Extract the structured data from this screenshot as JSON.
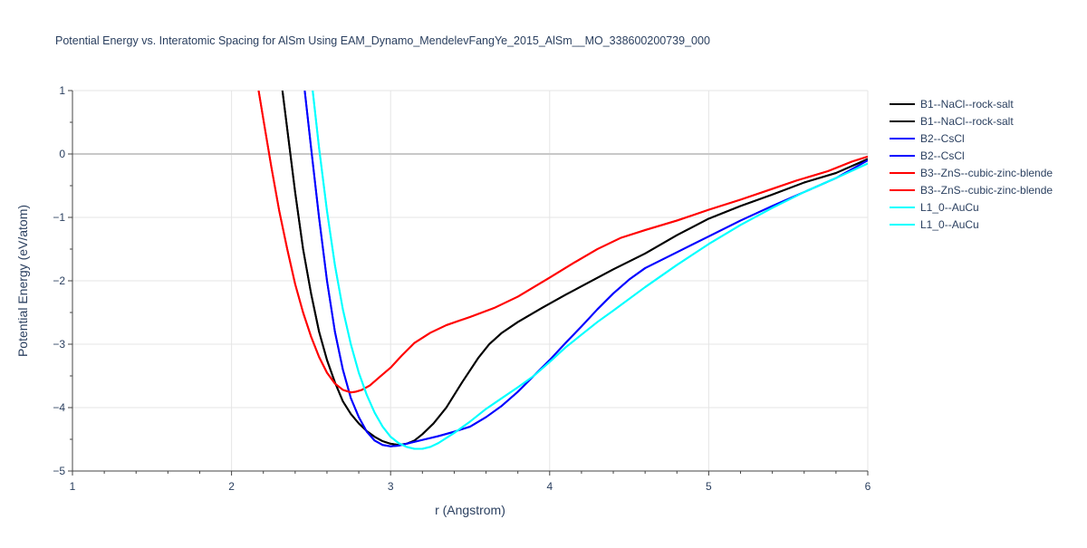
{
  "chart_data": {
    "type": "line",
    "title": "Potential Energy vs. Interatomic Spacing for AlSm Using EAM_Dynamo_MendelevFangYe_2015_AlSm__MO_338600200739_000",
    "xlabel": "r (Angstrom)",
    "ylabel": "Potential Energy (eV/atom)",
    "xlim": [
      1,
      6
    ],
    "ylim": [
      -5,
      1
    ],
    "xticks": [
      1,
      2,
      3,
      4,
      5,
      6
    ],
    "yticks": [
      1,
      0,
      -1,
      -2,
      -3,
      -4,
      -5
    ],
    "xtick_labels": [
      "1",
      "2",
      "3",
      "4",
      "5",
      "6"
    ],
    "ytick_labels": [
      "1",
      "0",
      "−1",
      "−2",
      "−3",
      "−4",
      "−5"
    ],
    "grid": true,
    "legend_position": "top-right",
    "series": [
      {
        "name": "B1--NaCl--rock-salt",
        "color": "#000000",
        "x": [
          2.32,
          2.36,
          2.4,
          2.45,
          2.5,
          2.55,
          2.6,
          2.65,
          2.7,
          2.75,
          2.8,
          2.85,
          2.9,
          2.95,
          3.0,
          3.05,
          3.1,
          3.15,
          3.2,
          3.27,
          3.35,
          3.45,
          3.55,
          3.62,
          3.7,
          3.8,
          3.95,
          4.1,
          4.25,
          4.4,
          4.6,
          4.8,
          5.0,
          5.2,
          5.4,
          5.6,
          5.8,
          6.0
        ],
        "y": [
          1.0,
          0.2,
          -0.6,
          -1.5,
          -2.2,
          -2.8,
          -3.25,
          -3.6,
          -3.9,
          -4.1,
          -4.25,
          -4.37,
          -4.46,
          -4.53,
          -4.57,
          -4.59,
          -4.57,
          -4.52,
          -4.42,
          -4.25,
          -4.0,
          -3.6,
          -3.22,
          -3.0,
          -2.82,
          -2.65,
          -2.43,
          -2.22,
          -2.02,
          -1.82,
          -1.57,
          -1.28,
          -1.02,
          -0.82,
          -0.64,
          -0.45,
          -0.3,
          -0.08
        ]
      },
      {
        "name": "B1--NaCl--rock-salt",
        "color": "#000000",
        "x": [
          2.32,
          2.36,
          2.4,
          2.45,
          2.5,
          2.55,
          2.6,
          2.65,
          2.7,
          2.75,
          2.8,
          2.85,
          2.9,
          2.95,
          3.0,
          3.05,
          3.1,
          3.15,
          3.2,
          3.27,
          3.35,
          3.45,
          3.55,
          3.62,
          3.7,
          3.8,
          3.95,
          4.1,
          4.25,
          4.4,
          4.6,
          4.8,
          5.0,
          5.2,
          5.4,
          5.6,
          5.8,
          6.0
        ],
        "y": [
          1.0,
          0.2,
          -0.6,
          -1.5,
          -2.2,
          -2.8,
          -3.25,
          -3.6,
          -3.9,
          -4.1,
          -4.25,
          -4.37,
          -4.46,
          -4.53,
          -4.57,
          -4.59,
          -4.57,
          -4.52,
          -4.42,
          -4.25,
          -4.0,
          -3.6,
          -3.22,
          -3.0,
          -2.82,
          -2.65,
          -2.43,
          -2.22,
          -2.02,
          -1.82,
          -1.57,
          -1.28,
          -1.02,
          -0.82,
          -0.64,
          -0.45,
          -0.3,
          -0.08
        ]
      },
      {
        "name": "B2--CsCl",
        "color": "#0000ff",
        "x": [
          2.46,
          2.5,
          2.55,
          2.6,
          2.65,
          2.7,
          2.75,
          2.8,
          2.85,
          2.9,
          2.95,
          3.0,
          3.05,
          3.1,
          3.2,
          3.3,
          3.4,
          3.5,
          3.6,
          3.7,
          3.8,
          3.9,
          4.0,
          4.1,
          4.2,
          4.3,
          4.4,
          4.5,
          4.6,
          4.8,
          5.0,
          5.2,
          5.4,
          5.6,
          5.8,
          6.0
        ],
        "y": [
          1.0,
          0.1,
          -1.0,
          -2.0,
          -2.8,
          -3.4,
          -3.85,
          -4.15,
          -4.38,
          -4.52,
          -4.59,
          -4.61,
          -4.6,
          -4.57,
          -4.51,
          -4.45,
          -4.38,
          -4.3,
          -4.15,
          -3.97,
          -3.75,
          -3.5,
          -3.25,
          -2.98,
          -2.72,
          -2.45,
          -2.2,
          -1.98,
          -1.8,
          -1.55,
          -1.3,
          -1.05,
          -0.82,
          -0.6,
          -0.38,
          -0.1
        ]
      },
      {
        "name": "B2--CsCl",
        "color": "#0000ff",
        "x": [
          2.46,
          2.5,
          2.55,
          2.6,
          2.65,
          2.7,
          2.75,
          2.8,
          2.85,
          2.9,
          2.95,
          3.0,
          3.05,
          3.1,
          3.2,
          3.3,
          3.4,
          3.5,
          3.6,
          3.7,
          3.8,
          3.9,
          4.0,
          4.1,
          4.2,
          4.3,
          4.4,
          4.5,
          4.6,
          4.8,
          5.0,
          5.2,
          5.4,
          5.6,
          5.8,
          6.0
        ],
        "y": [
          1.0,
          0.1,
          -1.0,
          -2.0,
          -2.8,
          -3.4,
          -3.85,
          -4.15,
          -4.38,
          -4.52,
          -4.59,
          -4.61,
          -4.6,
          -4.57,
          -4.51,
          -4.45,
          -4.38,
          -4.3,
          -4.15,
          -3.97,
          -3.75,
          -3.5,
          -3.25,
          -2.98,
          -2.72,
          -2.45,
          -2.2,
          -1.98,
          -1.8,
          -1.55,
          -1.3,
          -1.05,
          -0.82,
          -0.6,
          -0.38,
          -0.1
        ]
      },
      {
        "name": "B3--ZnS--cubic-zinc-blende",
        "color": "#ff0000",
        "x": [
          2.17,
          2.2,
          2.25,
          2.3,
          2.35,
          2.4,
          2.45,
          2.5,
          2.55,
          2.6,
          2.65,
          2.7,
          2.75,
          2.78,
          2.82,
          2.87,
          2.93,
          3.0,
          3.07,
          3.15,
          3.25,
          3.35,
          3.5,
          3.65,
          3.8,
          4.0,
          4.15,
          4.3,
          4.45,
          4.6,
          4.8,
          5.0,
          5.2,
          5.4,
          5.55,
          5.75,
          5.9,
          6.0
        ],
        "y": [
          1.0,
          0.55,
          -0.2,
          -0.9,
          -1.5,
          -2.05,
          -2.5,
          -2.88,
          -3.2,
          -3.45,
          -3.62,
          -3.72,
          -3.76,
          -3.75,
          -3.72,
          -3.65,
          -3.52,
          -3.37,
          -3.18,
          -2.98,
          -2.82,
          -2.7,
          -2.57,
          -2.43,
          -2.25,
          -1.95,
          -1.72,
          -1.5,
          -1.32,
          -1.2,
          -1.05,
          -0.88,
          -0.72,
          -0.55,
          -0.42,
          -0.27,
          -0.12,
          -0.04
        ]
      },
      {
        "name": "B3--ZnS--cubic-zinc-blende",
        "color": "#ff0000",
        "x": [
          2.17,
          2.2,
          2.25,
          2.3,
          2.35,
          2.4,
          2.45,
          2.5,
          2.55,
          2.6,
          2.65,
          2.7,
          2.75,
          2.78,
          2.82,
          2.87,
          2.93,
          3.0,
          3.07,
          3.15,
          3.25,
          3.35,
          3.5,
          3.65,
          3.8,
          4.0,
          4.15,
          4.3,
          4.45,
          4.6,
          4.8,
          5.0,
          5.2,
          5.4,
          5.55,
          5.75,
          5.9,
          6.0
        ],
        "y": [
          1.0,
          0.55,
          -0.2,
          -0.9,
          -1.5,
          -2.05,
          -2.5,
          -2.88,
          -3.2,
          -3.45,
          -3.62,
          -3.72,
          -3.76,
          -3.75,
          -3.72,
          -3.65,
          -3.52,
          -3.37,
          -3.18,
          -2.98,
          -2.82,
          -2.7,
          -2.57,
          -2.43,
          -2.25,
          -1.95,
          -1.72,
          -1.5,
          -1.32,
          -1.2,
          -1.05,
          -0.88,
          -0.72,
          -0.55,
          -0.42,
          -0.27,
          -0.12,
          -0.04
        ]
      },
      {
        "name": "L1_0--AuCu",
        "color": "#00ffff",
        "x": [
          2.51,
          2.55,
          2.6,
          2.65,
          2.7,
          2.75,
          2.8,
          2.85,
          2.9,
          2.95,
          3.0,
          3.05,
          3.1,
          3.15,
          3.2,
          3.25,
          3.3,
          3.4,
          3.5,
          3.6,
          3.7,
          3.8,
          3.9,
          4.0,
          4.1,
          4.2,
          4.3,
          4.4,
          4.6,
          4.8,
          5.0,
          5.2,
          5.4,
          5.6,
          5.8,
          6.0
        ],
        "y": [
          1.0,
          0.1,
          -0.9,
          -1.75,
          -2.45,
          -3.0,
          -3.45,
          -3.8,
          -4.08,
          -4.3,
          -4.46,
          -4.56,
          -4.62,
          -4.65,
          -4.65,
          -4.62,
          -4.56,
          -4.4,
          -4.22,
          -4.02,
          -3.85,
          -3.68,
          -3.5,
          -3.28,
          -3.05,
          -2.85,
          -2.65,
          -2.47,
          -2.1,
          -1.75,
          -1.42,
          -1.12,
          -0.85,
          -0.6,
          -0.38,
          -0.15
        ]
      },
      {
        "name": "L1_0--AuCu",
        "color": "#00ffff",
        "x": [
          2.51,
          2.55,
          2.6,
          2.65,
          2.7,
          2.75,
          2.8,
          2.85,
          2.9,
          2.95,
          3.0,
          3.05,
          3.1,
          3.15,
          3.2,
          3.25,
          3.3,
          3.4,
          3.5,
          3.6,
          3.7,
          3.8,
          3.9,
          4.0,
          4.1,
          4.2,
          4.3,
          4.4,
          4.6,
          4.8,
          5.0,
          5.2,
          5.4,
          5.6,
          5.8,
          6.0
        ],
        "y": [
          1.0,
          0.1,
          -0.9,
          -1.75,
          -2.45,
          -3.0,
          -3.45,
          -3.8,
          -4.08,
          -4.3,
          -4.46,
          -4.56,
          -4.62,
          -4.65,
          -4.65,
          -4.62,
          -4.56,
          -4.4,
          -4.22,
          -4.02,
          -3.85,
          -3.68,
          -3.5,
          -3.28,
          -3.05,
          -2.85,
          -2.65,
          -2.47,
          -2.1,
          -1.75,
          -1.42,
          -1.12,
          -0.85,
          -0.6,
          -0.38,
          -0.15
        ]
      }
    ]
  }
}
